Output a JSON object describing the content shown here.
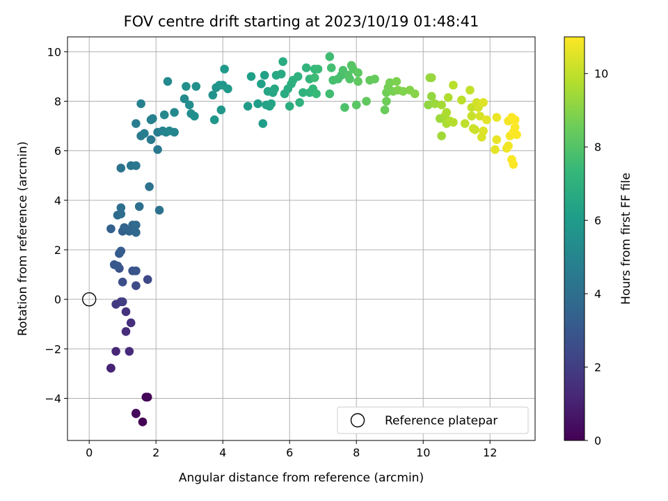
{
  "chart_data": {
    "type": "scatter",
    "title": "FOV centre drift starting at 2023/10/19 01:48:41",
    "xlabel": "Angular distance from reference (arcmin)",
    "ylabel": "Rotation from reference (arcmin)",
    "xlim": [
      -0.65,
      13.35
    ],
    "ylim": [
      -5.7,
      10.6
    ],
    "xticks": [
      0,
      2,
      4,
      6,
      8,
      10,
      12
    ],
    "yticks": [
      -4,
      -2,
      0,
      2,
      4,
      6,
      8,
      10
    ],
    "grid": true,
    "legend": {
      "placement": "lower-right",
      "entries": [
        "Reference platepar"
      ]
    },
    "reference_point": {
      "x": 0,
      "y": 0,
      "label": "Reference platepar"
    },
    "colorbar": {
      "label": "Hours from first FF file",
      "colormap": "viridis",
      "range": [
        0,
        11
      ],
      "ticks": [
        0,
        2,
        4,
        6,
        8,
        10
      ]
    },
    "points": [
      [
        1.6,
        -4.95,
        0.05
      ],
      [
        1.7,
        -3.95,
        0.1
      ],
      [
        1.75,
        -3.95,
        0.15
      ],
      [
        1.4,
        -4.6,
        0.2
      ],
      [
        1.4,
        -4.62,
        0.25
      ],
      [
        0.65,
        -2.78,
        1.0
      ],
      [
        0.65,
        -2.78,
        1.05
      ],
      [
        0.8,
        -2.1,
        1.2
      ],
      [
        1.2,
        -2.1,
        1.3
      ],
      [
        1.1,
        -1.3,
        1.4
      ],
      [
        1.25,
        -0.95,
        1.5
      ],
      [
        1.1,
        -0.5,
        1.6
      ],
      [
        0.95,
        -0.1,
        1.8
      ],
      [
        0.8,
        -0.2,
        1.9
      ],
      [
        1.0,
        -0.1,
        2.0
      ],
      [
        1.75,
        0.8,
        2.4
      ],
      [
        1.4,
        0.55,
        2.5
      ],
      [
        1.0,
        0.7,
        2.6
      ],
      [
        0.9,
        1.25,
        2.7
      ],
      [
        1.3,
        1.15,
        2.8
      ],
      [
        1.4,
        1.15,
        2.9
      ],
      [
        0.75,
        1.4,
        3.0
      ],
      [
        0.85,
        1.35,
        3.05
      ],
      [
        0.9,
        1.85,
        3.1
      ],
      [
        0.95,
        1.95,
        3.2
      ],
      [
        1.0,
        2.75,
        3.3
      ],
      [
        0.65,
        2.85,
        3.4
      ],
      [
        1.05,
        2.9,
        3.5
      ],
      [
        1.2,
        2.75,
        3.55
      ],
      [
        1.3,
        2.9,
        3.6
      ],
      [
        1.4,
        2.7,
        3.65
      ],
      [
        1.3,
        3.0,
        3.7
      ],
      [
        1.4,
        3.0,
        3.8
      ],
      [
        0.85,
        3.4,
        3.85
      ],
      [
        0.95,
        3.45,
        3.9
      ],
      [
        0.95,
        3.7,
        3.95
      ],
      [
        1.5,
        3.75,
        4.0
      ],
      [
        2.1,
        3.6,
        4.1
      ],
      [
        1.8,
        4.55,
        4.15
      ],
      [
        0.95,
        5.3,
        4.2
      ],
      [
        1.25,
        5.4,
        4.3
      ],
      [
        1.4,
        5.4,
        4.35
      ],
      [
        2.05,
        6.05,
        4.4
      ],
      [
        1.85,
        6.45,
        4.45
      ],
      [
        1.55,
        6.6,
        4.5
      ],
      [
        2.05,
        6.75,
        4.6
      ],
      [
        1.65,
        6.7,
        4.65
      ],
      [
        1.4,
        7.1,
        4.7
      ],
      [
        1.85,
        7.25,
        4.75
      ],
      [
        1.9,
        7.3,
        4.8
      ],
      [
        1.55,
        7.9,
        4.85
      ],
      [
        2.2,
        6.8,
        4.9
      ],
      [
        2.3,
        6.75,
        5.0
      ],
      [
        2.55,
        6.75,
        5.05
      ],
      [
        2.4,
        6.8,
        5.1
      ],
      [
        2.25,
        7.45,
        5.15
      ],
      [
        2.55,
        7.55,
        5.2
      ],
      [
        2.35,
        8.8,
        5.25
      ],
      [
        2.85,
        8.1,
        5.3
      ],
      [
        3.0,
        7.85,
        5.35
      ],
      [
        3.05,
        7.5,
        5.4
      ],
      [
        3.15,
        7.4,
        5.45
      ],
      [
        2.9,
        8.6,
        5.5
      ],
      [
        3.2,
        8.6,
        5.55
      ],
      [
        3.7,
        8.25,
        5.6
      ],
      [
        3.8,
        8.55,
        5.65
      ],
      [
        3.9,
        8.65,
        5.7
      ],
      [
        3.75,
        7.25,
        5.75
      ],
      [
        3.95,
        7.65,
        5.8
      ],
      [
        4.0,
        8.65,
        5.85
      ],
      [
        4.15,
        8.5,
        5.9
      ],
      [
        4.05,
        9.3,
        5.95
      ],
      [
        4.75,
        7.8,
        6.0
      ],
      [
        5.05,
        7.9,
        6.05
      ],
      [
        5.2,
        7.1,
        6.1
      ],
      [
        4.85,
        9.0,
        6.15
      ],
      [
        5.15,
        8.7,
        6.2
      ],
      [
        5.25,
        9.05,
        6.25
      ],
      [
        5.3,
        7.85,
        6.3
      ],
      [
        5.4,
        7.8,
        6.35
      ],
      [
        5.45,
        7.9,
        6.4
      ],
      [
        5.35,
        8.4,
        6.45
      ],
      [
        5.5,
        8.35,
        6.5
      ],
      [
        5.55,
        8.5,
        6.55
      ],
      [
        5.6,
        9.05,
        6.6
      ],
      [
        5.75,
        9.1,
        6.65
      ],
      [
        5.8,
        9.6,
        6.7
      ],
      [
        5.85,
        8.3,
        6.75
      ],
      [
        5.95,
        8.5,
        6.8
      ],
      [
        6.0,
        7.8,
        6.85
      ],
      [
        6.05,
        8.7,
        6.9
      ],
      [
        6.1,
        8.85,
        6.95
      ],
      [
        6.25,
        9.0,
        7.0
      ],
      [
        6.3,
        7.95,
        7.05
      ],
      [
        6.4,
        8.35,
        7.1
      ],
      [
        6.5,
        9.35,
        7.15
      ],
      [
        6.6,
        8.35,
        7.2
      ],
      [
        6.6,
        8.9,
        7.25
      ],
      [
        6.7,
        8.5,
        7.3
      ],
      [
        6.75,
        9.3,
        7.35
      ],
      [
        6.8,
        8.3,
        7.4
      ],
      [
        6.85,
        9.3,
        7.45
      ],
      [
        6.75,
        8.95,
        7.5
      ],
      [
        7.2,
        9.8,
        7.55
      ],
      [
        7.2,
        8.3,
        7.6
      ],
      [
        7.25,
        9.35,
        7.65
      ],
      [
        7.3,
        8.85,
        7.7
      ],
      [
        7.45,
        8.9,
        7.75
      ],
      [
        7.55,
        9.05,
        7.8
      ],
      [
        7.6,
        9.25,
        7.85
      ],
      [
        7.65,
        7.75,
        7.9
      ],
      [
        7.75,
        9.05,
        7.95
      ],
      [
        7.8,
        8.9,
        8.0
      ],
      [
        7.85,
        9.45,
        8.05
      ],
      [
        7.9,
        9.3,
        8.1
      ],
      [
        8.0,
        7.85,
        8.15
      ],
      [
        8.05,
        9.15,
        8.2
      ],
      [
        8.05,
        8.8,
        8.25
      ],
      [
        8.3,
        8.0,
        8.3
      ],
      [
        8.4,
        8.85,
        8.35
      ],
      [
        8.55,
        8.9,
        8.4
      ],
      [
        8.85,
        7.65,
        8.5
      ],
      [
        8.9,
        8.0,
        8.55
      ],
      [
        8.9,
        8.35,
        8.6
      ],
      [
        8.95,
        8.55,
        8.65
      ],
      [
        9.0,
        8.75,
        8.7
      ],
      [
        9.1,
        8.4,
        8.75
      ],
      [
        9.2,
        8.8,
        8.8
      ],
      [
        9.25,
        8.45,
        8.85
      ],
      [
        9.4,
        8.4,
        8.9
      ],
      [
        9.6,
        8.45,
        8.95
      ],
      [
        9.75,
        8.3,
        9.0
      ],
      [
        10.15,
        7.85,
        9.15
      ],
      [
        10.25,
        8.2,
        9.2
      ],
      [
        10.2,
        8.95,
        9.25
      ],
      [
        10.25,
        8.95,
        9.3
      ],
      [
        10.35,
        7.9,
        9.35
      ],
      [
        10.5,
        7.3,
        9.4
      ],
      [
        10.55,
        6.6,
        9.45
      ],
      [
        10.55,
        7.85,
        9.5
      ],
      [
        10.65,
        7.4,
        9.55
      ],
      [
        10.7,
        7.1,
        9.6
      ],
      [
        10.7,
        7.55,
        9.65
      ],
      [
        10.75,
        8.15,
        9.7
      ],
      [
        10.8,
        7.2,
        9.75
      ],
      [
        10.9,
        7.15,
        9.8
      ],
      [
        10.9,
        8.65,
        9.85
      ],
      [
        11.15,
        8.05,
        9.9
      ],
      [
        11.25,
        7.1,
        9.95
      ],
      [
        11.4,
        8.45,
        10.0
      ],
      [
        11.45,
        7.75,
        10.05
      ],
      [
        11.45,
        7.4,
        10.1
      ],
      [
        11.5,
        6.9,
        10.15
      ],
      [
        11.55,
        6.85,
        10.2
      ],
      [
        11.6,
        7.95,
        10.25
      ],
      [
        11.65,
        7.75,
        10.3
      ],
      [
        11.7,
        7.4,
        10.35
      ],
      [
        11.75,
        6.55,
        10.4
      ],
      [
        11.8,
        6.8,
        10.45
      ],
      [
        11.8,
        7.95,
        10.5
      ],
      [
        11.9,
        7.25,
        10.55
      ],
      [
        12.15,
        6.05,
        10.6
      ],
      [
        12.2,
        6.45,
        10.65
      ],
      [
        12.2,
        7.35,
        10.7
      ],
      [
        12.5,
        6.1,
        10.75
      ],
      [
        12.55,
        6.2,
        10.8
      ],
      [
        12.55,
        7.2,
        10.85
      ],
      [
        12.6,
        6.6,
        10.9
      ],
      [
        12.65,
        5.65,
        10.95
      ],
      [
        12.65,
        7.35,
        11.0
      ],
      [
        12.7,
        6.75,
        10.98
      ],
      [
        12.7,
        5.45,
        10.97
      ],
      [
        12.75,
        7.25,
        10.99
      ],
      [
        12.75,
        6.95,
        10.96
      ],
      [
        12.8,
        6.65,
        10.99
      ]
    ]
  }
}
